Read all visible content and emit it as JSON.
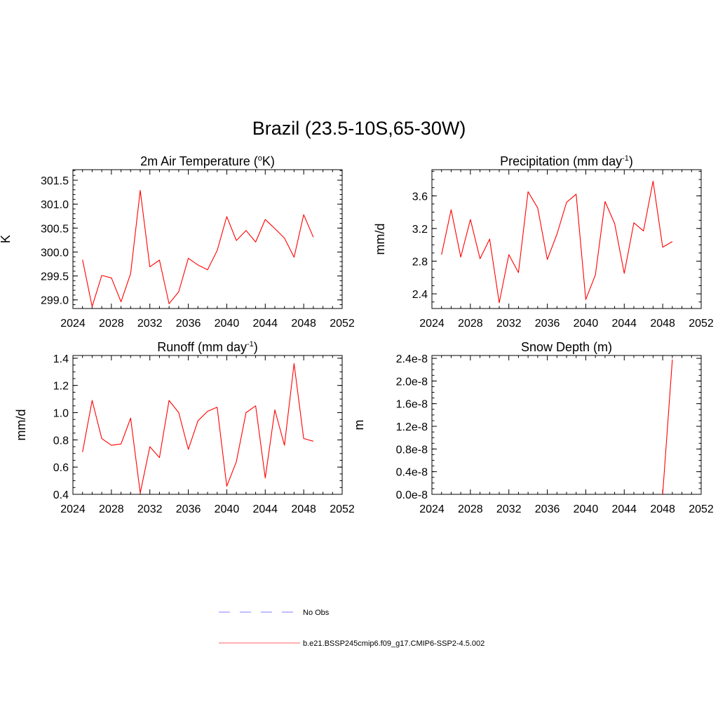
{
  "title": "Brazil (23.5-10S,65-30W)",
  "colors": {
    "series": "#ff0000",
    "obs": "#9a9aff",
    "axis": "#000000"
  },
  "legend": {
    "obs_label": "No Obs",
    "model_label": "b.e21.BSSP245cmip6.f09_g17.CMIP6-SSP2-4.5.002"
  },
  "panels": [
    {
      "title_main": "2m Air Temperature (",
      "title_sup": "o",
      "title_end": "K)"
    },
    {
      "title_main": "Precipitation (mm day",
      "title_sup": "-1",
      "title_end": ")"
    },
    {
      "title_main": "Runoff (mm day",
      "title_sup": "-1",
      "title_end": ")"
    },
    {
      "title_main": "Snow Depth (m)",
      "title_sup": "",
      "title_end": ""
    }
  ],
  "chart_data": [
    {
      "type": "line",
      "title": "2m Air Temperature (oK)",
      "xlabel": "",
      "ylabel": "K",
      "xlim": [
        2024,
        2052
      ],
      "ylim": [
        298.82,
        301.72
      ],
      "xticks": [
        2024,
        2028,
        2032,
        2036,
        2040,
        2044,
        2048,
        2052
      ],
      "xtick_labels": [
        "2024",
        "2028",
        "2032",
        "2036",
        "2040",
        "2044",
        "2048",
        "2052"
      ],
      "yticks": [
        299.0,
        299.5,
        300.0,
        300.5,
        301.0,
        301.5
      ],
      "ytick_labels": [
        "299.0",
        "299.5",
        "300.0",
        "300.5",
        "301.0",
        "301.5"
      ],
      "yminor": 0.1,
      "x": [
        2025,
        2026,
        2027,
        2028,
        2029,
        2030,
        2031,
        2032,
        2033,
        2034,
        2035,
        2036,
        2037,
        2038,
        2039,
        2040,
        2041,
        2042,
        2043,
        2044,
        2045,
        2046,
        2047,
        2048,
        2049
      ],
      "values": [
        299.84,
        298.86,
        299.51,
        299.46,
        298.96,
        299.55,
        301.29,
        299.69,
        299.83,
        298.92,
        299.17,
        299.87,
        299.73,
        299.63,
        300.03,
        300.74,
        300.24,
        300.45,
        300.21,
        300.68,
        300.49,
        300.29,
        299.89,
        300.78,
        300.31
      ]
    },
    {
      "type": "line",
      "title": "Precipitation (mm day-1)",
      "xlabel": "",
      "ylabel": "mm/d",
      "xlim": [
        2024,
        2052
      ],
      "ylim": [
        2.22,
        3.92
      ],
      "xticks": [
        2024,
        2028,
        2032,
        2036,
        2040,
        2044,
        2048,
        2052
      ],
      "xtick_labels": [
        "2024",
        "2028",
        "2032",
        "2036",
        "2040",
        "2044",
        "2048",
        "2052"
      ],
      "yticks": [
        2.4,
        2.8,
        3.2,
        3.6
      ],
      "ytick_labels": [
        "2.4",
        "2.8",
        "3.2",
        "3.6"
      ],
      "yminor": 0.1,
      "x": [
        2025,
        2026,
        2027,
        2028,
        2029,
        2030,
        2031,
        2032,
        2033,
        2034,
        2035,
        2036,
        2037,
        2038,
        2039,
        2040,
        2041,
        2042,
        2043,
        2044,
        2045,
        2046,
        2047,
        2048,
        2049
      ],
      "values": [
        2.88,
        3.43,
        2.85,
        3.31,
        2.83,
        3.07,
        2.29,
        2.88,
        2.66,
        3.65,
        3.45,
        2.82,
        3.13,
        3.52,
        3.62,
        2.33,
        2.63,
        3.53,
        3.26,
        2.65,
        3.27,
        3.17,
        3.78,
        2.97,
        3.04
      ]
    },
    {
      "type": "line",
      "title": "Runoff (mm day-1)",
      "xlabel": "",
      "ylabel": "mm/d",
      "xlim": [
        2024,
        2052
      ],
      "ylim": [
        0.4,
        1.42
      ],
      "xticks": [
        2024,
        2028,
        2032,
        2036,
        2040,
        2044,
        2048,
        2052
      ],
      "xtick_labels": [
        "2024",
        "2028",
        "2032",
        "2036",
        "2040",
        "2044",
        "2048",
        "2052"
      ],
      "yticks": [
        0.4,
        0.6,
        0.8,
        1.0,
        1.2,
        1.4
      ],
      "ytick_labels": [
        "0.4",
        "0.6",
        "0.8",
        "1.0",
        "1.2",
        "1.4"
      ],
      "yminor": 0.05,
      "x": [
        2025,
        2026,
        2027,
        2028,
        2029,
        2030,
        2031,
        2032,
        2033,
        2034,
        2035,
        2036,
        2037,
        2038,
        2039,
        2040,
        2041,
        2042,
        2043,
        2044,
        2045,
        2046,
        2047,
        2048,
        2049
      ],
      "values": [
        0.71,
        1.09,
        0.81,
        0.76,
        0.77,
        0.96,
        0.41,
        0.75,
        0.67,
        1.09,
        1.0,
        0.73,
        0.94,
        1.01,
        1.04,
        0.46,
        0.64,
        1.0,
        1.05,
        0.52,
        1.02,
        0.76,
        1.36,
        0.81,
        0.79
      ]
    },
    {
      "type": "line",
      "title": "Snow Depth (m)",
      "xlabel": "",
      "ylabel": "m",
      "xlim": [
        2024,
        2052
      ],
      "ylim": [
        0,
        2.45e-08
      ],
      "xticks": [
        2024,
        2028,
        2032,
        2036,
        2040,
        2044,
        2048,
        2052
      ],
      "xtick_labels": [
        "2024",
        "2028",
        "2032",
        "2036",
        "2040",
        "2044",
        "2048",
        "2052"
      ],
      "yticks": [
        0,
        4e-09,
        8e-09,
        1.2e-08,
        1.6e-08,
        2e-08,
        2.4e-08
      ],
      "ytick_labels": [
        "0.0e-8",
        "0.4e-8",
        "0.8e-8",
        "1.2e-8",
        "1.6e-8",
        "2.0e-8",
        "2.4e-8"
      ],
      "yminor": 1e-09,
      "x": [
        2025,
        2026,
        2027,
        2028,
        2029,
        2030,
        2031,
        2032,
        2033,
        2034,
        2035,
        2036,
        2037,
        2038,
        2039,
        2040,
        2041,
        2042,
        2043,
        2044,
        2045,
        2046,
        2047,
        2048,
        2049
      ],
      "values": [
        0,
        0,
        0,
        0,
        0,
        0,
        0,
        0,
        0,
        0,
        0,
        0,
        0,
        0,
        0,
        0,
        0,
        0,
        0,
        0,
        0,
        0,
        0,
        0,
        2.38e-08
      ]
    }
  ]
}
